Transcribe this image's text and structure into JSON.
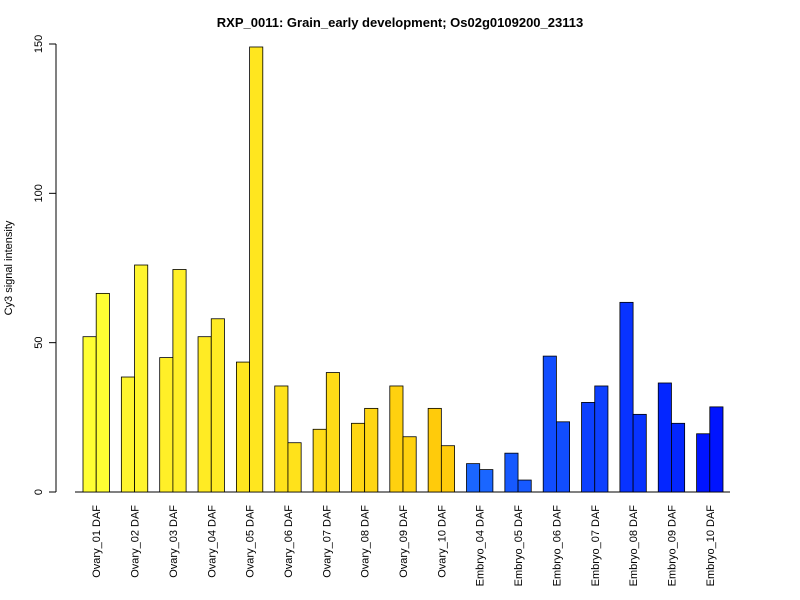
{
  "chart_data": {
    "type": "bar",
    "title": "RXP_0011: Grain_early development; Os02g0109200_23113",
    "xlabel": "",
    "ylabel": "Cy3 signal intensity",
    "ylim": [
      0,
      150
    ],
    "yticks": [
      0,
      50,
      100,
      150
    ],
    "grid": false,
    "categories": [
      "Ovary_01 DAF",
      "Ovary_02 DAF",
      "Ovary_03 DAF",
      "Ovary_04 DAF",
      "Ovary_05 DAF",
      "Ovary_06 DAF",
      "Ovary_07 DAF",
      "Ovary_08 DAF",
      "Ovary_09 DAF",
      "Ovary_10 DAF",
      "Embryo_04 DAF",
      "Embryo_05 DAF",
      "Embryo_06 DAF",
      "Embryo_07 DAF",
      "Embryo_08 DAF",
      "Embryo_09 DAF",
      "Embryo_10 DAF"
    ],
    "series": [
      {
        "values": [
          52,
          38.5,
          45,
          52,
          43.5,
          35.5,
          21,
          23,
          35.5,
          28,
          9.5,
          13,
          45.5,
          30,
          63.5,
          36.5,
          19.5
        ]
      },
      {
        "values": [
          66.5,
          76,
          74.5,
          58,
          149,
          16.5,
          40,
          28,
          18.5,
          15.5,
          7.5,
          4,
          23.5,
          35.5,
          26,
          23,
          28.5
        ]
      }
    ],
    "colors": [
      "#ffff33",
      "#fff52e",
      "#ffef28",
      "#ffeb24",
      "#ffe61f",
      "#ffe21b",
      "#ffdc17",
      "#ffd613",
      "#ffd10f",
      "#ffcb0b",
      "#1a66ff",
      "#1659ff",
      "#114dff",
      "#0d40ff",
      "#0833ff",
      "#0426ff",
      "#0014ff"
    ]
  }
}
